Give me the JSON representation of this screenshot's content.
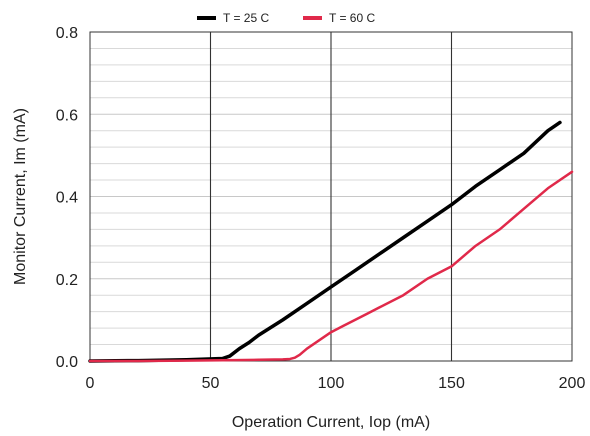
{
  "chart_data": {
    "type": "line",
    "xlabel": "Operation Current, Iop (mA)",
    "ylabel": "Monitor Current, Im (mA)",
    "xlim": [
      0,
      200
    ],
    "ylim": [
      0,
      0.8
    ],
    "x_ticks": [
      "0",
      "50",
      "100",
      "150",
      "200"
    ],
    "y_ticks": [
      "0.0",
      "0.2",
      "0.4",
      "0.6",
      "0.8"
    ],
    "x_tick_values": [
      0,
      50,
      100,
      150,
      200
    ],
    "y_tick_values": [
      0,
      0.2,
      0.4,
      0.6,
      0.8
    ],
    "grid": {
      "major_vertical": true,
      "minor_horizontal": true
    },
    "legend_position": "top-center",
    "series": [
      {
        "name": "T = 25 C",
        "color": "#000000",
        "x": [
          0,
          20,
          40,
          55,
          58,
          62,
          66,
          70,
          80,
          90,
          100,
          110,
          120,
          130,
          140,
          150,
          160,
          170,
          180,
          190,
          195
        ],
        "y": [
          0.0,
          0.001,
          0.003,
          0.006,
          0.012,
          0.03,
          0.045,
          0.063,
          0.1,
          0.14,
          0.18,
          0.22,
          0.26,
          0.3,
          0.34,
          0.38,
          0.425,
          0.465,
          0.505,
          0.56,
          0.58
        ]
      },
      {
        "name": "T = 60 C",
        "color": "#e0294a",
        "x": [
          0,
          20,
          40,
          60,
          70,
          80,
          83,
          85,
          87,
          90,
          95,
          100,
          105,
          110,
          115,
          120,
          130,
          140,
          150,
          160,
          170,
          180,
          190,
          200
        ],
        "y": [
          0.0,
          0.0,
          0.001,
          0.002,
          0.003,
          0.004,
          0.005,
          0.008,
          0.015,
          0.03,
          0.05,
          0.07,
          0.085,
          0.1,
          0.115,
          0.13,
          0.16,
          0.2,
          0.23,
          0.28,
          0.32,
          0.37,
          0.42,
          0.46
        ]
      }
    ]
  }
}
